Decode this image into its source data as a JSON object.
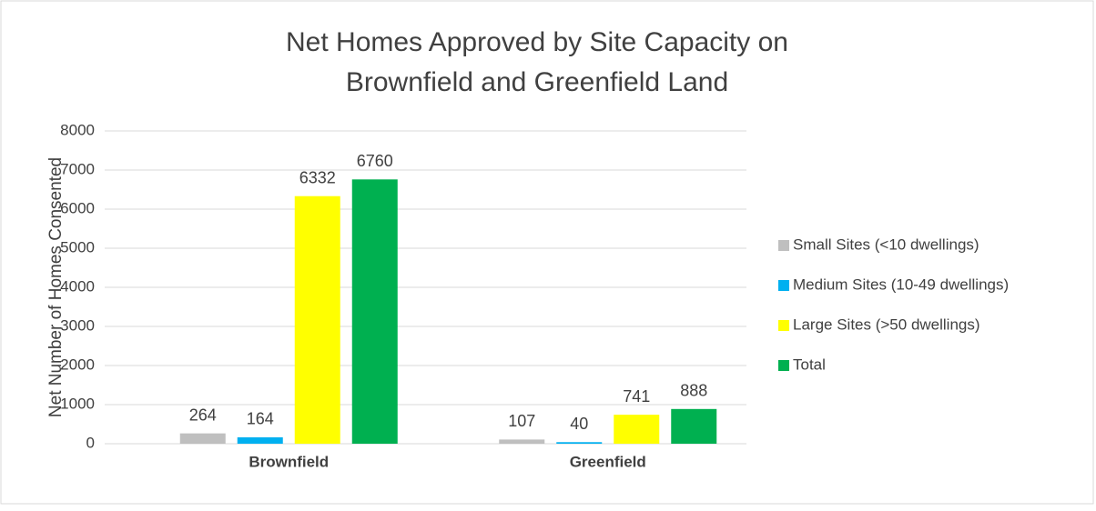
{
  "chart_data": {
    "type": "bar",
    "title": "Net Homes Approved by Site Capacity on Brownfield and Greenfield Land",
    "y_label": "Net Number of Homes Consented",
    "categories": [
      "Brownfield",
      "Greenfield"
    ],
    "series": [
      {
        "name": "Small Sites (<10 dwellings)",
        "color": "#bfbfbf",
        "values": [
          264,
          107
        ]
      },
      {
        "name": "Medium Sites (10-49 dwellings)",
        "color": "#00b0f0",
        "values": [
          164,
          40
        ]
      },
      {
        "name": "Large Sites (>50 dwellings)",
        "color": "#ffff00",
        "values": [
          6332,
          741
        ]
      },
      {
        "name": "Total",
        "color": "#00b050",
        "values": [
          6760,
          888
        ]
      }
    ],
    "ylim": [
      0,
      8000
    ],
    "yticks": [
      0,
      1000,
      2000,
      3000,
      4000,
      5000,
      6000,
      7000,
      8000
    ],
    "grid": true,
    "legend": "right"
  }
}
